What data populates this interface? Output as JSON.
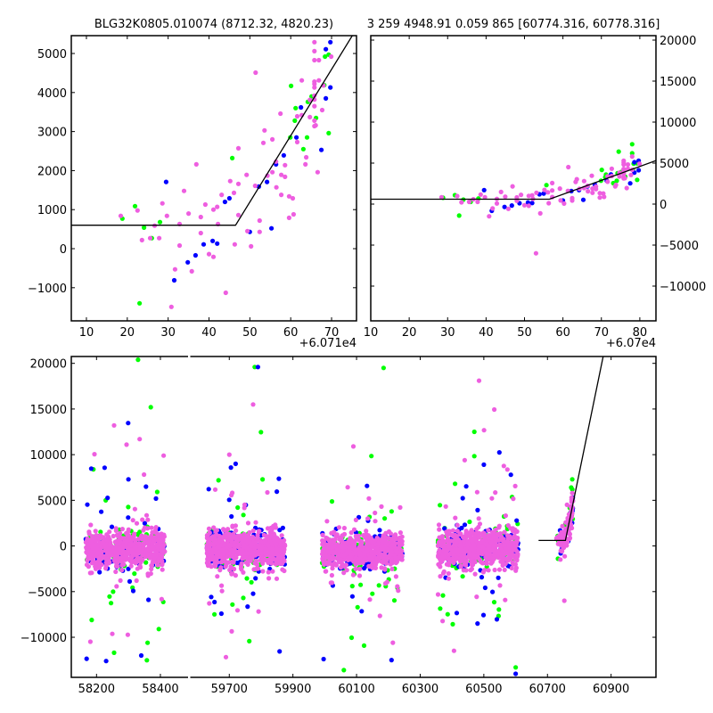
{
  "colors": {
    "pink": "#ee5ee0",
    "blue": "#0000ff",
    "green": "#00ff00",
    "line": "#000000"
  },
  "chart_data": [
    {
      "id": "top-left",
      "type": "scatter",
      "title": "BLG32K0805.010074 (8712.32, 4820.23)",
      "x_offset_label": "+6.071e4",
      "x_offset": 60710,
      "xlim": [
        6.3,
        76.1
      ],
      "ylim": [
        -1849,
        5457
      ],
      "xticks": [
        10,
        20,
        30,
        40,
        50,
        60,
        70
      ],
      "yticks": [
        -1000,
        0,
        1000,
        2000,
        3000,
        4000,
        5000
      ],
      "ytick_side": "left",
      "fit": {
        "break_x": 46.5,
        "flat_y": 600,
        "slope": 170,
        "x_start": -38
      }
    },
    {
      "id": "top-right",
      "type": "scatter",
      "title": "3 259 4948.91 0.059 865 [60774.316, 60778.316]",
      "x_offset_label": "+6.07e4",
      "x_offset": 60700,
      "xlim": [
        10,
        84.2
      ],
      "ylim": [
        -14239,
        20543
      ],
      "xticks": [
        10,
        20,
        30,
        40,
        50,
        60,
        70,
        80
      ],
      "yticks": [
        -10000,
        -5000,
        0,
        5000,
        10000,
        15000,
        20000
      ],
      "ytick_side": "right"
    },
    {
      "id": "bottom",
      "type": "scatter",
      "xlim_segments": [
        [
          58121,
          58488
        ],
        [
          59576,
          61041
        ]
      ],
      "ylim": [
        -14390,
        20750
      ],
      "xticks": [
        58200,
        58400,
        59700,
        59900,
        60100,
        60300,
        60500,
        60700,
        60900
      ],
      "yticks": [
        -10000,
        -5000,
        0,
        5000,
        10000,
        15000,
        20000
      ],
      "ytick_side": "left",
      "clusters": [
        {
          "x_range": [
            58166,
            58415
          ],
          "n": {
            "green": 110,
            "blue": 110,
            "pink": 520
          },
          "core_mean": -400,
          "core_sd": 1000,
          "outlier_frac": 0.12,
          "outlier_sd": 6000
        },
        {
          "x_range": [
            59629,
            59875
          ],
          "n": {
            "green": 110,
            "blue": 160,
            "pink": 620
          },
          "core_mean": -400,
          "core_sd": 1000,
          "outlier_frac": 0.1,
          "outlier_sd": 5500
        },
        {
          "x_range": [
            59992,
            60244
          ],
          "n": {
            "green": 110,
            "blue": 140,
            "pink": 600
          },
          "core_mean": -500,
          "core_sd": 900,
          "outlier_frac": 0.1,
          "outlier_sd": 5500
        },
        {
          "x_range": [
            60356,
            60608
          ],
          "n": {
            "green": 110,
            "blue": 140,
            "pink": 600
          },
          "core_mean": -300,
          "core_sd": 1000,
          "outlier_frac": 0.1,
          "outlier_sd": 5500
        }
      ],
      "outliers": {
        "green": [
          [
            58330,
            20400
          ],
          [
            58370,
            15200
          ],
          [
            58185,
            -8100
          ],
          [
            58255,
            -11700
          ],
          [
            58360,
            -10600
          ],
          [
            58395,
            -9100
          ],
          [
            59780,
            19600
          ],
          [
            60185,
            19500
          ],
          [
            60470,
            12500
          ],
          [
            60600,
            -13300
          ],
          [
            60060,
            -13600
          ]
        ],
        "blue": [
          [
            58230,
            -12600
          ],
          [
            58340,
            -12000
          ],
          [
            58300,
            7300
          ],
          [
            58355,
            6500
          ],
          [
            59790,
            19600
          ],
          [
            59720,
            9000
          ],
          [
            60210,
            -12500
          ],
          [
            60500,
            8900
          ],
          [
            60585,
            7800
          ],
          [
            60600,
            -14000
          ]
        ],
        "pink": [
          [
            58255,
            13200
          ],
          [
            58335,
            11700
          ],
          [
            58410,
            9900
          ],
          [
            59775,
            15500
          ],
          [
            59700,
            10000
          ],
          [
            60090,
            10900
          ],
          [
            60485,
            18100
          ],
          [
            60440,
            9400
          ]
        ]
      },
      "fit": {
        "break_x_abs": 60756.5,
        "flat_y": 600,
        "slope": 170,
        "x_start_abs": 60672
      }
    }
  ],
  "points": {
    "x_offset": 60710,
    "pink": [
      [
        65.8,
        5290
      ],
      [
        65.8,
        5060
      ],
      [
        65.8,
        4830
      ],
      [
        66.9,
        4830
      ],
      [
        69.9,
        4920
      ],
      [
        51.4,
        4510
      ],
      [
        62.7,
        4310
      ],
      [
        65.8,
        4280
      ],
      [
        66.9,
        4310
      ],
      [
        65.8,
        4220
      ],
      [
        65.8,
        4130
      ],
      [
        68.0,
        4180
      ],
      [
        65.8,
        3920
      ],
      [
        64.7,
        3810
      ],
      [
        65.8,
        3820
      ],
      [
        65.8,
        3650
      ],
      [
        62.7,
        3420
      ],
      [
        61.6,
        3390
      ],
      [
        64.7,
        3370
      ],
      [
        67.7,
        3550
      ],
      [
        65.8,
        3280
      ],
      [
        65.8,
        3140
      ],
      [
        66.1,
        3160
      ],
      [
        61.6,
        2730
      ],
      [
        63.8,
        2340
      ],
      [
        63.6,
        2160
      ],
      [
        66.6,
        1960
      ],
      [
        57.5,
        3460
      ],
      [
        53.6,
        3030
      ],
      [
        53.3,
        2710
      ],
      [
        55.5,
        2800
      ],
      [
        47.2,
        2570
      ],
      [
        36.9,
        2160
      ],
      [
        49.2,
        1890
      ],
      [
        45.2,
        1730
      ],
      [
        47.2,
        1660
      ],
      [
        51.3,
        1610
      ],
      [
        54.3,
        1870
      ],
      [
        55.5,
        1960
      ],
      [
        56.4,
        2230
      ],
      [
        58.6,
        2140
      ],
      [
        57.7,
        1890
      ],
      [
        58.6,
        1840
      ],
      [
        56.5,
        1570
      ],
      [
        57.7,
        1380
      ],
      [
        59.6,
        1340
      ],
      [
        60.5,
        1290
      ],
      [
        60.7,
        880
      ],
      [
        59.6,
        790
      ],
      [
        52.4,
        720
      ],
      [
        52.4,
        430
      ],
      [
        50.3,
        60
      ],
      [
        49.4,
        450
      ],
      [
        46.3,
        110
      ],
      [
        47.2,
        860
      ],
      [
        46.1,
        1430
      ],
      [
        43.1,
        1380
      ],
      [
        42.0,
        1070
      ],
      [
        41.1,
        1000
      ],
      [
        39.1,
        1130
      ],
      [
        38.0,
        810
      ],
      [
        35.0,
        900
      ],
      [
        33.9,
        1480
      ],
      [
        28.6,
        1160
      ],
      [
        29.7,
        840
      ],
      [
        22.5,
        980
      ],
      [
        18.4,
        840
      ],
      [
        26.7,
        590
      ],
      [
        23.6,
        220
      ],
      [
        25.6,
        270
      ],
      [
        27.8,
        270
      ],
      [
        32.8,
        630
      ],
      [
        38.0,
        400
      ],
      [
        42.2,
        630
      ],
      [
        32.8,
        80
      ],
      [
        40.0,
        -140
      ],
      [
        41.1,
        -210
      ],
      [
        31.7,
        -530
      ],
      [
        35.8,
        -580
      ],
      [
        44.1,
        -1130
      ],
      [
        30.8,
        -1490
      ],
      [
        43.0,
        -6000
      ],
      [
        68.0,
        5800
      ]
    ],
    "green": [
      [
        60.1,
        4170
      ],
      [
        61.2,
        3600
      ],
      [
        61.0,
        3280
      ],
      [
        64.2,
        3760
      ],
      [
        65.1,
        3900
      ],
      [
        66.2,
        3350
      ],
      [
        68.2,
        4190
      ],
      [
        69.3,
        4970
      ],
      [
        68.4,
        4920
      ],
      [
        69.3,
        2960
      ],
      [
        64.0,
        2850
      ],
      [
        63.1,
        2550
      ],
      [
        59.9,
        2850
      ],
      [
        45.7,
        2320
      ],
      [
        21.9,
        1090
      ],
      [
        18.8,
        770
      ],
      [
        28.0,
        680
      ],
      [
        24.1,
        540
      ],
      [
        26.0,
        270
      ],
      [
        23.0,
        -1400
      ],
      [
        68.0,
        7300
      ],
      [
        64.5,
        6400
      ],
      [
        68.0,
        6200
      ]
    ],
    "blue": [
      [
        69.7,
        5290
      ],
      [
        68.6,
        5110
      ],
      [
        69.7,
        4130
      ],
      [
        68.6,
        3850
      ],
      [
        62.5,
        3620
      ],
      [
        61.4,
        2850
      ],
      [
        67.5,
        2530
      ],
      [
        58.3,
        2390
      ],
      [
        56.4,
        2160
      ],
      [
        54.2,
        1710
      ],
      [
        52.2,
        1590
      ],
      [
        45.0,
        1290
      ],
      [
        43.9,
        1200
      ],
      [
        55.3,
        520
      ],
      [
        50.0,
        430
      ],
      [
        40.9,
        200
      ],
      [
        42.0,
        130
      ],
      [
        38.7,
        110
      ],
      [
        36.7,
        -170
      ],
      [
        34.8,
        -350
      ],
      [
        31.5,
        -810
      ],
      [
        29.5,
        1710
      ]
    ]
  }
}
